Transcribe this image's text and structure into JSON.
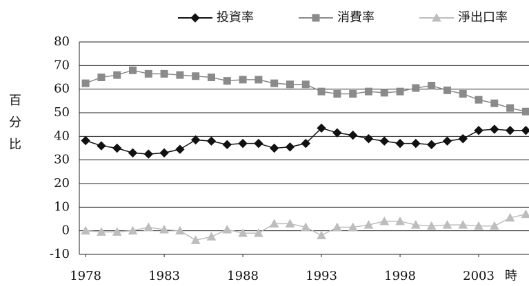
{
  "chart_data": {
    "type": "line",
    "y_label": "百分比",
    "x_label": "時",
    "x": [
      1978,
      1979,
      1980,
      1981,
      1982,
      1983,
      1984,
      1985,
      1986,
      1987,
      1988,
      1989,
      1990,
      1991,
      1992,
      1993,
      1994,
      1995,
      1996,
      1997,
      1998,
      1999,
      2000,
      2001,
      2002,
      2003,
      2004,
      2005,
      2006
    ],
    "series": [
      {
        "name": "投資率",
        "color": "#111111",
        "marker": "diamond",
        "values": [
          38.2,
          36,
          35,
          33,
          32.5,
          33,
          34.5,
          38.5,
          38,
          36.5,
          37,
          37,
          35,
          35.5,
          37,
          43.5,
          41.5,
          40.5,
          39,
          38,
          37,
          37,
          36.5,
          38,
          39,
          42.5,
          43,
          42.5,
          42.5
        ]
      },
      {
        "name": "消費率",
        "color": "#8a8a8a",
        "marker": "square",
        "values": [
          62.5,
          65,
          66,
          68,
          66.5,
          66.5,
          66,
          65.5,
          65,
          63.5,
          64,
          64,
          62.5,
          62,
          62,
          59,
          58,
          58,
          59,
          58.5,
          59,
          60.5,
          61.5,
          59.5,
          58,
          55.5,
          54,
          52,
          50.5
        ]
      },
      {
        "name": "淨出口率",
        "color": "#bdbdbd",
        "marker": "triangle",
        "values": [
          0,
          -0.5,
          -0.5,
          0,
          1.5,
          0.5,
          0,
          -4,
          -2.5,
          0.5,
          -1,
          -1,
          3,
          3,
          1.5,
          -2,
          1.5,
          1.5,
          2.5,
          4,
          4,
          2.5,
          2,
          2.5,
          2.5,
          2,
          2,
          5.5,
          7
        ]
      }
    ],
    "xlim": [
      1977.6,
      2006.2
    ],
    "xticks": [
      1978,
      1983,
      1988,
      1993,
      1998,
      2003
    ],
    "ylim": [
      -10,
      80
    ],
    "yticks": [
      -10,
      0,
      10,
      20,
      30,
      40,
      50,
      60,
      70,
      80
    ],
    "grid": true
  }
}
